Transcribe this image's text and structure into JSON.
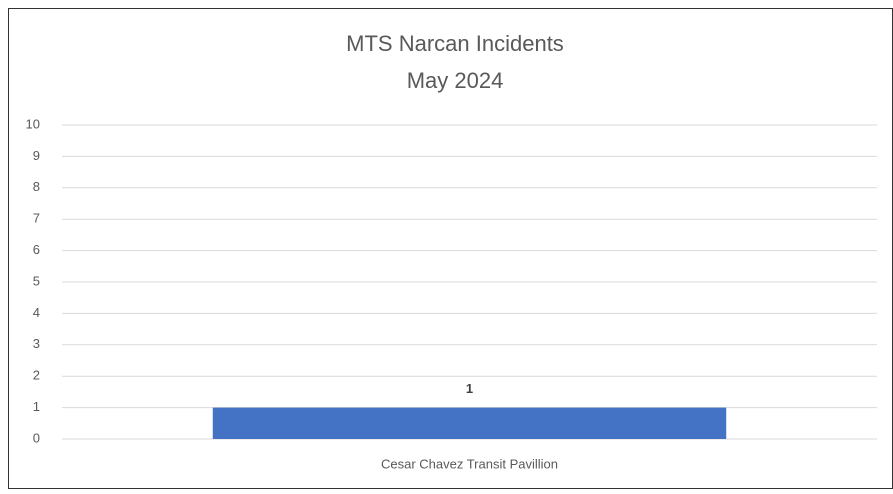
{
  "chart_data": {
    "type": "bar",
    "title": "MTS Narcan Incidents",
    "subtitle": "May 2024",
    "categories": [
      "Cesar Chavez Transit Pavillion"
    ],
    "values": [
      1
    ],
    "color": "#4472c4",
    "ylim": [
      0,
      10
    ],
    "yticks": [
      0,
      1,
      2,
      3,
      4,
      5,
      6,
      7,
      8,
      9,
      10
    ],
    "grid": true,
    "show_value_labels": true
  }
}
